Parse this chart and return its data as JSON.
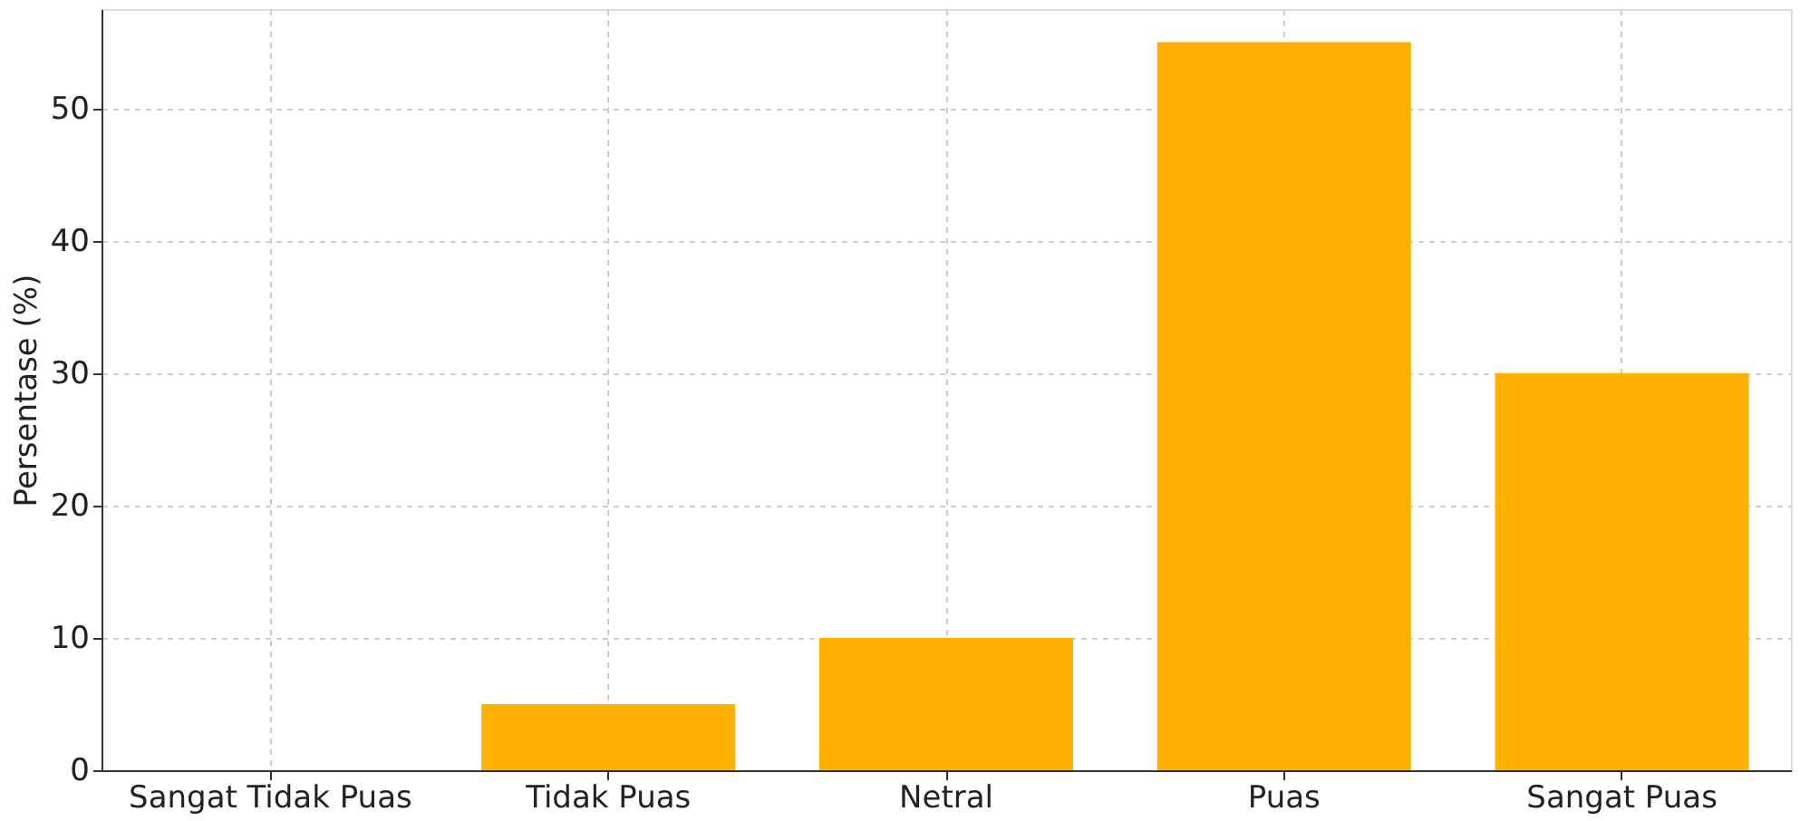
{
  "chart_data": {
    "type": "bar",
    "ylabel": "Persentase (%)",
    "categories": [
      "Sangat Tidak Puas",
      "Tidak Puas",
      "Netral",
      "Puas",
      "Sangat Puas"
    ],
    "values": [
      0,
      5,
      10,
      55,
      30
    ],
    "color": "#ffb000",
    "ylim": [
      0,
      57.5
    ],
    "yticks": [
      0,
      10,
      20,
      30,
      40,
      50
    ],
    "grid": true
  }
}
